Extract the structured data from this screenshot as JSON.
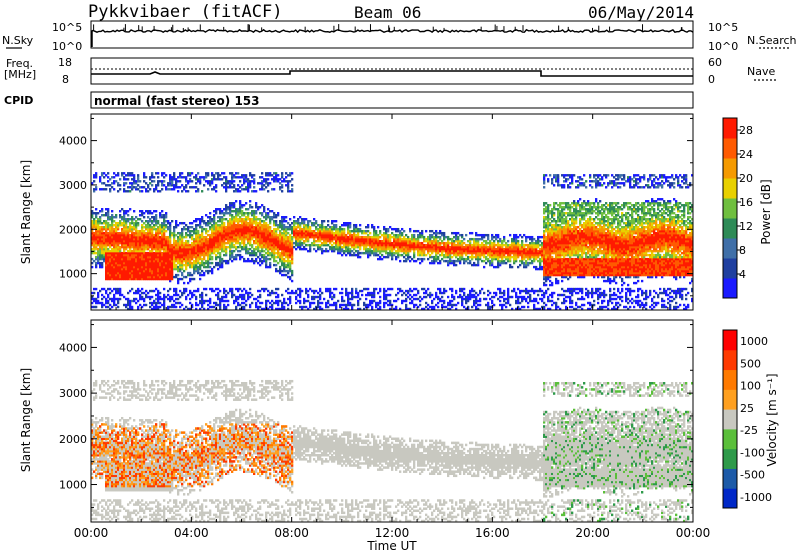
{
  "header": {
    "station": "Pykkvibaer (fitACF)",
    "beam": "Beam 06",
    "date": "06/May/2014"
  },
  "noise_panel": {
    "left_label": "N.Sky",
    "right_label": "N.Search",
    "tick_top": "10^5",
    "tick_bottom": "10^0"
  },
  "freq_panel": {
    "left_label_1": "Freq.",
    "left_label_2": "[MHz]",
    "right_label": "Nave",
    "left_ticks": [
      "18",
      "8"
    ],
    "right_ticks": [
      "60",
      "0"
    ]
  },
  "cpid": {
    "label": "CPID",
    "text": "normal (fast stereo) 153"
  },
  "colors": {
    "power_scale": [
      "#1a1aff",
      "#1f3fa0",
      "#3f6fa8",
      "#2e8b57",
      "#6fbf3f",
      "#e8d000",
      "#f59a00",
      "#ff5a00",
      "#ff1a00"
    ],
    "velocity_scale": [
      "#0028c8",
      "#1c5aa8",
      "#2e9a4a",
      "#5abf3a",
      "#c8c8c0",
      "#ffa020",
      "#ff7a00",
      "#ff3a00",
      "#ff0000"
    ]
  },
  "chart_data": [
    {
      "type": "heatmap",
      "title": "",
      "xlabel": "Time UT",
      "ylabel": "Slant Range [km]",
      "xticks": [
        "00:00",
        "04:00",
        "08:00",
        "12:00",
        "16:00",
        "20:00",
        "00:00"
      ],
      "yticks": [
        "1000",
        "2000",
        "3000",
        "4000"
      ],
      "xlim_hours": [
        0,
        24
      ],
      "ylim_km": [
        180,
        4600
      ],
      "colorbar": {
        "label": "Power [dB]",
        "ticks": [
          "4",
          "8",
          "12",
          "16",
          "20",
          "24",
          "28"
        ],
        "range": [
          0,
          30
        ]
      },
      "description_regions": [
        {
          "from": 0.5,
          "to": 3.0,
          "range_km": [
            900,
            1400
          ],
          "level": "high"
        },
        {
          "from": 0.0,
          "to": 8.0,
          "range_km": [
            1500,
            2300
          ],
          "level": "medium"
        },
        {
          "from": 8.0,
          "to": 18.0,
          "range_km": [
            1300,
            2200
          ],
          "level": "high"
        },
        {
          "from": 18.0,
          "to": 24.0,
          "range_km": [
            1000,
            2600
          ],
          "level": "high"
        }
      ]
    },
    {
      "type": "heatmap",
      "title": "",
      "xlabel": "Time UT",
      "ylabel": "Slant Range [km]",
      "xticks": [
        "00:00",
        "04:00",
        "08:00",
        "12:00",
        "16:00",
        "20:00",
        "00:00"
      ],
      "yticks": [
        "1000",
        "2000",
        "3000",
        "4000"
      ],
      "xlim_hours": [
        0,
        24
      ],
      "ylim_km": [
        180,
        4600
      ],
      "colorbar": {
        "label": "Velocity [m s⁻¹]",
        "ticks": [
          "1000",
          "500",
          "100",
          "25",
          "-25",
          "-100",
          "-500",
          "-1000"
        ],
        "range": [
          -1000,
          1000
        ]
      }
    }
  ]
}
